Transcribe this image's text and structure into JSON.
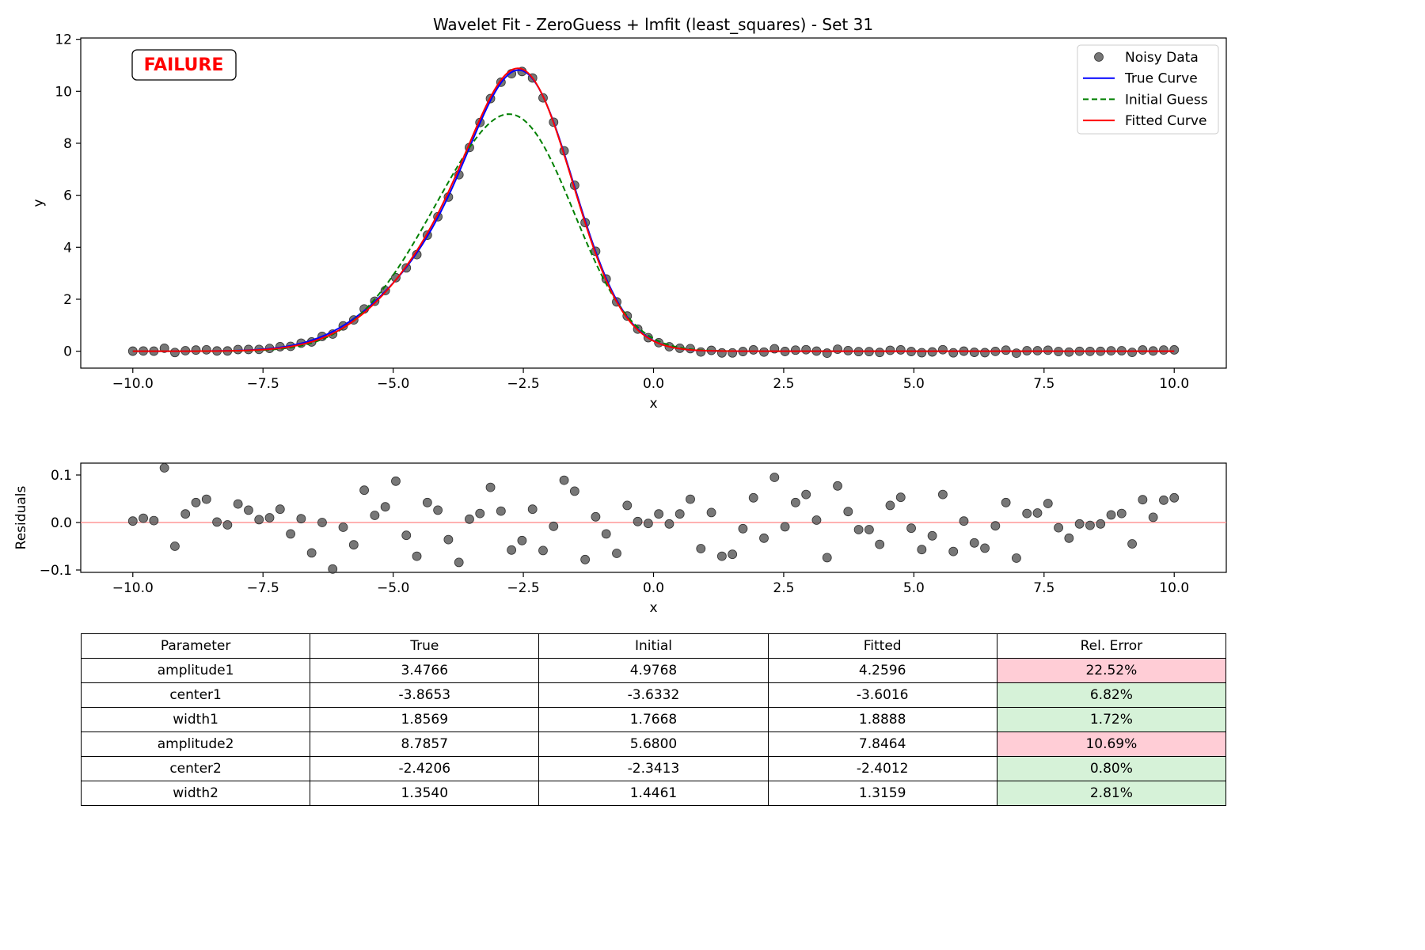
{
  "colors": {
    "noisy": "#555555",
    "true_curve": "#0000ff",
    "initial": "#008000",
    "fitted": "#ff0000",
    "zero_line": "#ff9999",
    "error_bad": "#ffcdd6",
    "error_good": "#d6f2d8"
  },
  "badge": {
    "text": "FAILURE"
  },
  "chart_data": [
    {
      "type": "line",
      "title": "Wavelet Fit - ZeroGuess + lmfit (least_squares) - Set 31",
      "xlabel": "x",
      "ylabel": "y",
      "xlim": [
        -11.0,
        11.0
      ],
      "ylim": [
        -0.65,
        12.05
      ],
      "xticks": [
        "−10.0",
        "−7.5",
        "−5.0",
        "−2.5",
        "0.0",
        "2.5",
        "5.0",
        "7.5",
        "10.0"
      ],
      "xtick_values": [
        -10,
        -7.5,
        -5,
        -2.5,
        0,
        2.5,
        5,
        7.5,
        10
      ],
      "yticks": [
        "0",
        "2",
        "4",
        "6",
        "8",
        "10",
        "12"
      ],
      "ytick_values": [
        0,
        2,
        4,
        6,
        8,
        10,
        12
      ],
      "grid": false,
      "legend_position": "top-right",
      "legend": [
        "Noisy Data",
        "True Curve",
        "Initial Guess",
        "Fitted Curve"
      ],
      "series": [
        {
          "name": "Noisy Data",
          "kind": "scatter",
          "x_range": [
            -10,
            10
          ],
          "n": 100,
          "model": "true",
          "noise_from": "residuals"
        },
        {
          "name": "True Curve",
          "kind": "line",
          "model": "true"
        },
        {
          "name": "Initial Guess",
          "kind": "line",
          "model": "initial",
          "dashed": true
        },
        {
          "name": "Fitted Curve",
          "kind": "line",
          "model": "fitted"
        }
      ]
    },
    {
      "type": "scatter",
      "xlabel": "x",
      "ylabel": "Residuals",
      "xlim": [
        -11.0,
        11.0
      ],
      "ylim": [
        -0.105,
        0.125
      ],
      "xticks": [
        "−10.0",
        "−7.5",
        "−5.0",
        "−2.5",
        "0.0",
        "2.5",
        "5.0",
        "7.5",
        "10.0"
      ],
      "xtick_values": [
        -10,
        -7.5,
        -5,
        -2.5,
        0,
        2.5,
        5,
        7.5,
        10
      ],
      "yticks": [
        "−0.1",
        "0.0",
        "0.1"
      ],
      "ytick_values": [
        -0.1,
        0,
        0.1
      ],
      "x_range": [
        -10,
        10
      ],
      "residuals": [
        0.003,
        0.009,
        0.004,
        0.115,
        -0.05,
        0.018,
        0.042,
        0.049,
        0.001,
        -0.005,
        0.039,
        0.026,
        0.006,
        0.01,
        0.028,
        -0.024,
        0.008,
        -0.064,
        0.0,
        -0.098,
        -0.01,
        -0.047,
        0.068,
        0.015,
        0.033,
        0.087,
        -0.027,
        -0.071,
        0.042,
        0.026,
        -0.036,
        -0.084,
        0.007,
        0.019,
        0.074,
        0.024,
        -0.058,
        -0.038,
        0.028,
        -0.059,
        -0.008,
        0.089,
        0.066,
        -0.078,
        0.012,
        -0.024,
        -0.065,
        0.036,
        0.002,
        -0.002,
        0.018,
        -0.003,
        0.018,
        0.049,
        -0.055,
        0.021,
        -0.071,
        -0.067,
        -0.013,
        0.052,
        -0.033,
        0.095,
        -0.009,
        0.042,
        0.059,
        0.005,
        -0.074,
        0.077,
        0.023,
        -0.015,
        -0.015,
        -0.046,
        0.036,
        0.053,
        -0.012,
        -0.057,
        -0.028,
        0.059,
        -0.061,
        0.003,
        -0.043,
        -0.054,
        -0.007,
        0.042,
        -0.075,
        0.019,
        0.02,
        0.04,
        -0.011,
        -0.033,
        -0.003,
        -0.006,
        -0.003,
        0.016,
        0.019,
        -0.045,
        0.048,
        0.011,
        0.047,
        0.052
      ]
    }
  ],
  "models": {
    "true": [
      3.4766,
      -3.8653,
      1.8569,
      8.7857,
      -2.4206,
      1.354
    ],
    "initial": [
      4.9768,
      -3.6332,
      1.7668,
      5.68,
      -2.3413,
      1.4461
    ],
    "fitted": [
      4.2596,
      -3.6016,
      1.8888,
      7.8464,
      -2.4012,
      1.3159
    ]
  },
  "table": {
    "headers": [
      "Parameter",
      "True",
      "Initial",
      "Fitted",
      "Rel. Error"
    ],
    "rows": [
      {
        "cells": [
          "amplitude1",
          "3.4766",
          "4.9768",
          "4.2596",
          "22.52%"
        ],
        "status": "bad"
      },
      {
        "cells": [
          "center1",
          "-3.8653",
          "-3.6332",
          "-3.6016",
          "6.82%"
        ],
        "status": "good"
      },
      {
        "cells": [
          "width1",
          "1.8569",
          "1.7668",
          "1.8888",
          "1.72%"
        ],
        "status": "good"
      },
      {
        "cells": [
          "amplitude2",
          "8.7857",
          "5.6800",
          "7.8464",
          "10.69%"
        ],
        "status": "bad"
      },
      {
        "cells": [
          "center2",
          "-2.4206",
          "-2.3413",
          "-2.4012",
          "0.80%"
        ],
        "status": "good"
      },
      {
        "cells": [
          "width2",
          "1.3540",
          "1.4461",
          "1.3159",
          "2.81%"
        ],
        "status": "good"
      }
    ]
  }
}
